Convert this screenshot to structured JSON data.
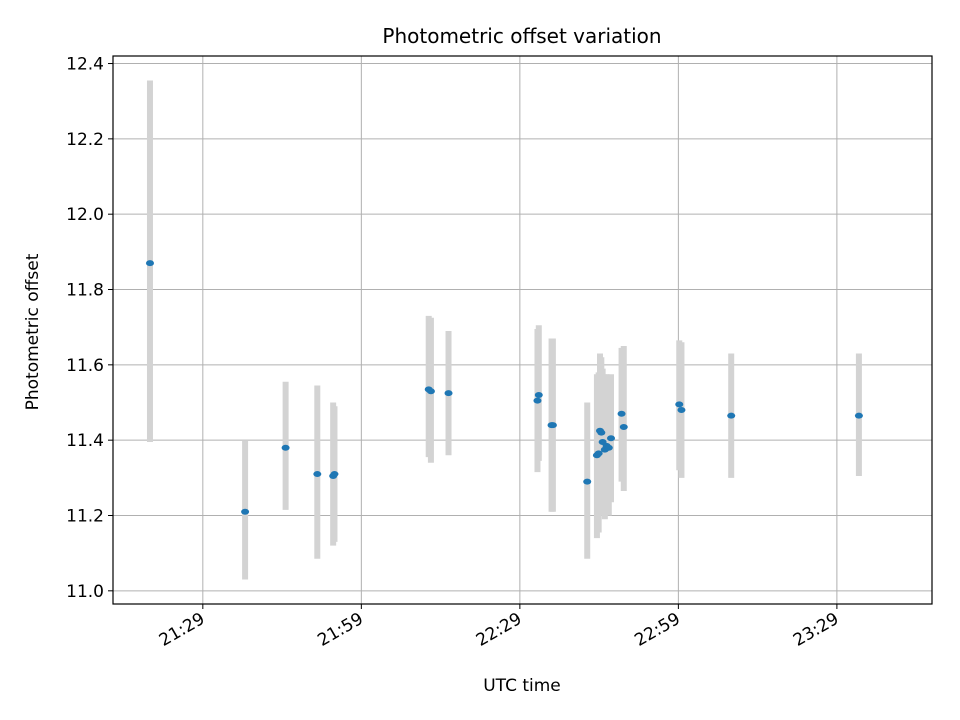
{
  "chart_data": {
    "type": "scatter",
    "title": "Photometric offset variation",
    "xlabel": "UTC time",
    "ylabel": "Photometric offset",
    "xlim": [
      "21:12",
      "23:47"
    ],
    "ylim": [
      10.965,
      12.42
    ],
    "x_ticks": [
      "21:29",
      "21:59",
      "22:29",
      "22:59",
      "23:29"
    ],
    "y_ticks": [
      "11.0",
      "11.2",
      "11.4",
      "11.6",
      "11.8",
      "12.0",
      "12.2",
      "12.4"
    ],
    "grid": true,
    "colors": {
      "marker": "#1f77b4",
      "errorbar": "#d3d3d3",
      "grid": "#b0b0b0"
    },
    "series": [
      {
        "points": [
          {
            "x": "21:19:00",
            "y": 11.87,
            "yerr_low": 11.395,
            "yerr_high": 12.355
          },
          {
            "x": "21:37:00",
            "y": 11.21,
            "yerr_low": 11.03,
            "yerr_high": 11.4
          },
          {
            "x": "21:44:40",
            "y": 11.38,
            "yerr_low": 11.215,
            "yerr_high": 11.555
          },
          {
            "x": "21:50:40",
            "y": 11.31,
            "yerr_low": 11.085,
            "yerr_high": 11.545
          },
          {
            "x": "21:53:40",
            "y": 11.305,
            "yerr_low": 11.12,
            "yerr_high": 11.5
          },
          {
            "x": "21:53:55",
            "y": 11.31,
            "yerr_low": 11.13,
            "yerr_high": 11.49
          },
          {
            "x": "22:11:45",
            "y": 11.535,
            "yerr_low": 11.355,
            "yerr_high": 11.73
          },
          {
            "x": "22:12:10",
            "y": 11.53,
            "yerr_low": 11.34,
            "yerr_high": 11.725
          },
          {
            "x": "22:15:30",
            "y": 11.525,
            "yerr_low": 11.36,
            "yerr_high": 11.69
          },
          {
            "x": "22:32:20",
            "y": 11.505,
            "yerr_low": 11.315,
            "yerr_high": 11.695
          },
          {
            "x": "22:32:35",
            "y": 11.52,
            "yerr_low": 11.345,
            "yerr_high": 11.705
          },
          {
            "x": "22:35:00",
            "y": 11.44,
            "yerr_low": 11.21,
            "yerr_high": 11.67
          },
          {
            "x": "22:35:15",
            "y": 11.44,
            "yerr_low": 11.21,
            "yerr_high": 11.67
          },
          {
            "x": "22:41:45",
            "y": 11.29,
            "yerr_low": 11.085,
            "yerr_high": 11.5
          },
          {
            "x": "22:43:35",
            "y": 11.36,
            "yerr_low": 11.14,
            "yerr_high": 11.575
          },
          {
            "x": "22:43:55",
            "y": 11.365,
            "yerr_low": 11.155,
            "yerr_high": 11.58
          },
          {
            "x": "22:44:10",
            "y": 11.425,
            "yerr_low": 11.225,
            "yerr_high": 11.63
          },
          {
            "x": "22:44:25",
            "y": 11.42,
            "yerr_low": 11.21,
            "yerr_high": 11.62
          },
          {
            "x": "22:44:40",
            "y": 11.395,
            "yerr_low": 11.2,
            "yerr_high": 11.59
          },
          {
            "x": "22:45:05",
            "y": 11.375,
            "yerr_low": 11.19,
            "yerr_high": 11.575
          },
          {
            "x": "22:45:25",
            "y": 11.385,
            "yerr_low": 11.2,
            "yerr_high": 11.575
          },
          {
            "x": "22:45:50",
            "y": 11.38,
            "yerr_low": 11.2,
            "yerr_high": 11.57
          },
          {
            "x": "22:46:15",
            "y": 11.405,
            "yerr_low": 11.235,
            "yerr_high": 11.575
          },
          {
            "x": "22:48:15",
            "y": 11.47,
            "yerr_low": 11.29,
            "yerr_high": 11.645
          },
          {
            "x": "22:48:40",
            "y": 11.435,
            "yerr_low": 11.265,
            "yerr_high": 11.65
          },
          {
            "x": "22:59:10",
            "y": 11.495,
            "yerr_low": 11.32,
            "yerr_high": 11.665
          },
          {
            "x": "22:59:35",
            "y": 11.48,
            "yerr_low": 11.3,
            "yerr_high": 11.66
          },
          {
            "x": "23:09:00",
            "y": 11.465,
            "yerr_low": 11.3,
            "yerr_high": 11.63
          },
          {
            "x": "23:33:10",
            "y": 11.465,
            "yerr_low": 11.305,
            "yerr_high": 11.63
          }
        ]
      }
    ]
  }
}
